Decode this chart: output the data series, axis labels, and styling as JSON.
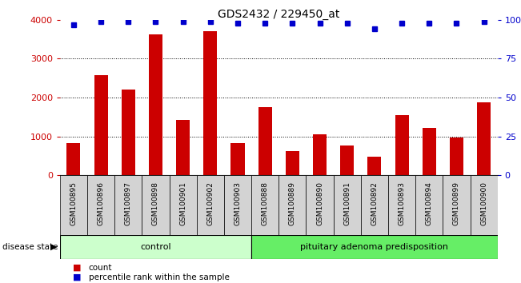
{
  "title": "GDS2432 / 229450_at",
  "categories": [
    "GSM100895",
    "GSM100896",
    "GSM100897",
    "GSM100898",
    "GSM100901",
    "GSM100902",
    "GSM100903",
    "GSM100888",
    "GSM100889",
    "GSM100890",
    "GSM100891",
    "GSM100892",
    "GSM100893",
    "GSM100894",
    "GSM100899",
    "GSM100900"
  ],
  "counts": [
    830,
    2580,
    2210,
    3620,
    1420,
    3700,
    840,
    1760,
    620,
    1050,
    770,
    490,
    1560,
    1230,
    980,
    1870
  ],
  "percentiles": [
    97,
    99,
    99,
    99,
    99,
    99,
    98,
    98,
    98,
    98,
    98,
    94,
    98,
    98,
    98,
    99
  ],
  "control_count": 7,
  "disease_count": 9,
  "control_label": "control",
  "disease_label": "pituitary adenoma predisposition",
  "bar_color": "#cc0000",
  "dot_color": "#0000cc",
  "ylim_left": [
    0,
    4000
  ],
  "ylim_right": [
    0,
    100
  ],
  "yticks_left": [
    0,
    1000,
    2000,
    3000,
    4000
  ],
  "yticks_right": [
    0,
    25,
    50,
    75,
    100
  ],
  "background_color": "#ffffff",
  "cell_bg_color": "#d3d3d3",
  "control_bg": "#ccffcc",
  "disease_bg": "#66ee66",
  "disease_state_label": "disease state",
  "legend_count_label": "count",
  "legend_pct_label": "percentile rank within the sample"
}
